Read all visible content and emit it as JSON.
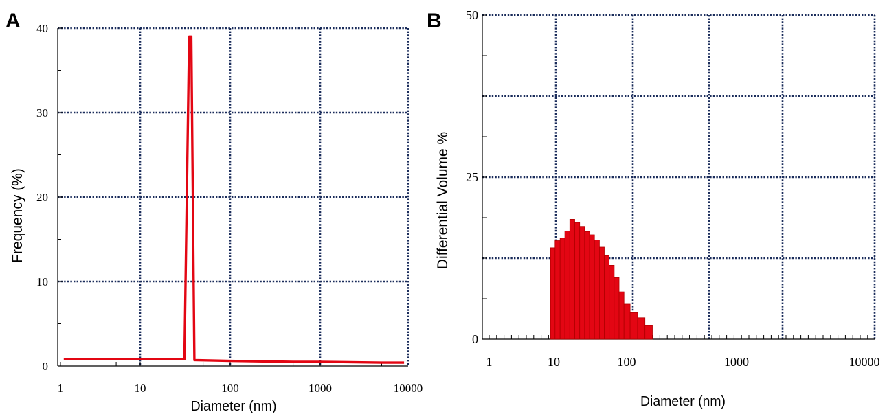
{
  "chart_data": [
    {
      "panel": "A",
      "type": "line",
      "title": "",
      "xlabel": "Diameter (nm)",
      "ylabel": "Frequency (%)",
      "x_scale": "log",
      "xlim": [
        1,
        10000
      ],
      "ylim": [
        0,
        40
      ],
      "x_ticks": [
        "1",
        "10",
        "100",
        "1000",
        "10000"
      ],
      "y_ticks": [
        "0",
        "10",
        "20",
        "30",
        "40"
      ],
      "grid": true,
      "legend": "none",
      "color": "#e30613",
      "series": [
        {
          "x": [
            1.1,
            5,
            10,
            20,
            31,
            35,
            37,
            40,
            100,
            500,
            1000,
            5000,
            9000
          ],
          "y": [
            0.8,
            0.8,
            0.8,
            0.8,
            0.8,
            39,
            39,
            0.7,
            0.6,
            0.5,
            0.5,
            0.4,
            0.4
          ]
        }
      ]
    },
    {
      "panel": "B",
      "type": "bar",
      "title": "",
      "xlabel": "Diameter (nm)",
      "ylabel": "Differential Volume %",
      "x_scale": "log",
      "xlim": [
        1,
        10000
      ],
      "ylim": [
        0,
        50
      ],
      "x_ticks": [
        "1",
        "10",
        "100",
        "1000",
        "10000"
      ],
      "y_ticks": [
        "0",
        "25",
        "50"
      ],
      "grid": true,
      "legend": "none",
      "color": "#e30613",
      "bins": [
        {
          "x0": 8.9,
          "x1": 10.4,
          "y": 14.1
        },
        {
          "x0": 10.4,
          "x1": 12.2,
          "y": 15.2
        },
        {
          "x0": 12.2,
          "x1": 14.2,
          "y": 15.6
        },
        {
          "x0": 14.2,
          "x1": 16.6,
          "y": 16.7
        },
        {
          "x0": 16.6,
          "x1": 19.4,
          "y": 18.5
        },
        {
          "x0": 19.4,
          "x1": 22.7,
          "y": 18.0
        },
        {
          "x0": 22.7,
          "x1": 26.5,
          "y": 17.4
        },
        {
          "x0": 26.5,
          "x1": 31.0,
          "y": 16.6
        },
        {
          "x0": 31.0,
          "x1": 36.2,
          "y": 16.1
        },
        {
          "x0": 36.2,
          "x1": 42.3,
          "y": 15.3
        },
        {
          "x0": 42.3,
          "x1": 49.4,
          "y": 14.2
        },
        {
          "x0": 49.4,
          "x1": 57.7,
          "y": 12.9
        },
        {
          "x0": 57.7,
          "x1": 67.4,
          "y": 11.4
        },
        {
          "x0": 67.4,
          "x1": 78.8,
          "y": 9.5
        },
        {
          "x0": 78.8,
          "x1": 92.1,
          "y": 7.3
        },
        {
          "x0": 92.1,
          "x1": 107.6,
          "y": 5.4
        },
        {
          "x0": 107.6,
          "x1": 125.7,
          "y": 4.1
        },
        {
          "x0": 125.7,
          "x1": 146.9,
          "y": 3.3
        },
        {
          "x0": 146.9,
          "x1": 171.6,
          "y": 2.1
        }
      ]
    }
  ]
}
